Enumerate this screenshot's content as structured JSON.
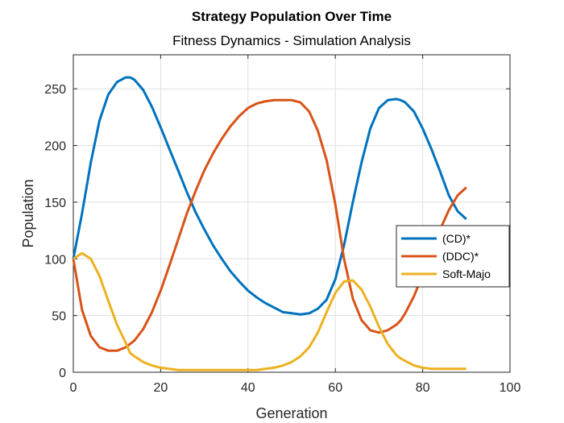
{
  "chart_data": {
    "type": "line",
    "title": "Strategy Population Over Time",
    "subtitle": "Fitness Dynamics - Simulation Analysis",
    "xlabel": "Generation",
    "ylabel": "Population",
    "xlim": [
      0,
      100
    ],
    "ylim": [
      0,
      280
    ],
    "xticks": [
      0,
      20,
      40,
      60,
      80,
      100
    ],
    "yticks": [
      0,
      50,
      100,
      150,
      200,
      250
    ],
    "grid": true,
    "legend_position": "right",
    "x": [
      0,
      2,
      4,
      6,
      8,
      10,
      12,
      13,
      14,
      16,
      18,
      20,
      22,
      24,
      26,
      28,
      30,
      32,
      34,
      36,
      38,
      40,
      42,
      44,
      46,
      48,
      50,
      52,
      54,
      56,
      58,
      60,
      62,
      64,
      66,
      68,
      70,
      72,
      74,
      75,
      76,
      78,
      80,
      82,
      84,
      86,
      88,
      90
    ],
    "series": [
      {
        "name": "(CD)*",
        "color": "#0072BD",
        "values": [
          100,
          140,
          185,
          222,
          245,
          256,
          260,
          260,
          258,
          249,
          234,
          216,
          197,
          178,
          159,
          141,
          126,
          112,
          100,
          89,
          80,
          72,
          66,
          61,
          57,
          53,
          52,
          51,
          52,
          56,
          64,
          82,
          112,
          150,
          185,
          215,
          233,
          240,
          241,
          240,
          238,
          230,
          215,
          197,
          177,
          156,
          142,
          135
        ]
      },
      {
        "name": "(DDC)*",
        "color": "#D95319",
        "values": [
          100,
          55,
          32,
          22,
          19,
          19,
          22,
          25,
          28,
          38,
          53,
          72,
          94,
          117,
          140,
          160,
          178,
          193,
          206,
          217,
          226,
          233,
          237,
          239,
          240,
          240,
          240,
          238,
          230,
          213,
          187,
          148,
          100,
          65,
          46,
          37,
          35,
          37,
          42,
          46,
          52,
          67,
          86,
          107,
          126,
          143,
          156,
          163
        ]
      },
      {
        "name": "Soft-Majo",
        "color": "#EDB120",
        "values": [
          100,
          105,
          100,
          85,
          63,
          42,
          26,
          17,
          14,
          9,
          6,
          4,
          3,
          2,
          2,
          2,
          2,
          2,
          2,
          2,
          2,
          2,
          2,
          3,
          4,
          6,
          9,
          14,
          22,
          35,
          53,
          70,
          80,
          81,
          73,
          58,
          40,
          25,
          15,
          12,
          10,
          6,
          4,
          3,
          3,
          3,
          3,
          3
        ]
      }
    ]
  }
}
